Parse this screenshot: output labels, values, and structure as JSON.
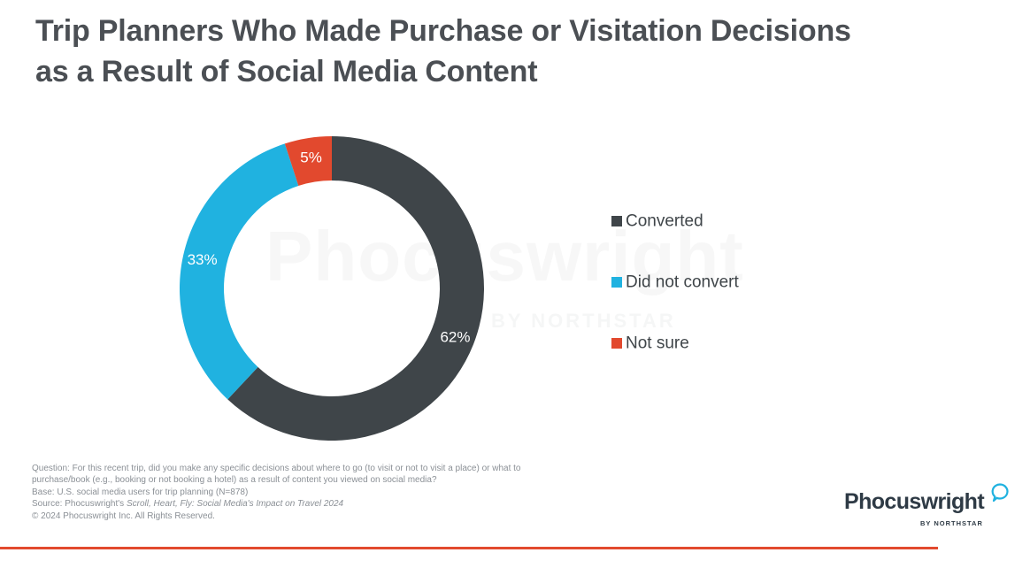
{
  "title_lines": [
    "Trip Planners Who Made Purchase or Visitation Decisions",
    "as a Result of Social Media Content"
  ],
  "chart_data": {
    "type": "pie",
    "donut": true,
    "title": "Trip Planners Who Made Purchase or Visitation Decisions as a Result of Social Media Content",
    "series": [
      {
        "name": "Converted",
        "value": 62,
        "label": "62%",
        "color": "#3f4549"
      },
      {
        "name": "Did not convert",
        "value": 33,
        "label": "33%",
        "color": "#20b2e0"
      },
      {
        "name": "Not sure",
        "value": 5,
        "label": "5%",
        "color": "#e2492e"
      }
    ],
    "start_at": "top",
    "direction": "clockwise",
    "legend_position": "right"
  },
  "footnotes": {
    "question_1": "Question: For this recent trip, did you make any specific decisions about where to go (to visit or not to visit a place) or what to",
    "question_2": "purchase/book (e.g., booking or not booking a hotel) as a result of content you viewed on social media?",
    "base": "Base: U.S. social media users for trip planning (N=878)",
    "source_prefix": "Source: Phocuswright's ",
    "source_title": "Scroll, Heart, Fly: Social Media's Impact on Travel 2024",
    "copyright": "© 2024 Phocuswright Inc. All Rights Reserved."
  },
  "logo": {
    "wordmark": "Phocuswright",
    "byline": "BY NORTHSTAR",
    "bubble_color": "#20b2e0",
    "text_color": "#2e3a45"
  },
  "watermark": {
    "wordmark": "Phocuswright",
    "byline": "BY NORTHSTAR"
  },
  "colors": {
    "title": "#4b4f54",
    "accent_rule": "#e2492e",
    "footnote": "#8b9096",
    "legend_text": "#3f4549"
  }
}
